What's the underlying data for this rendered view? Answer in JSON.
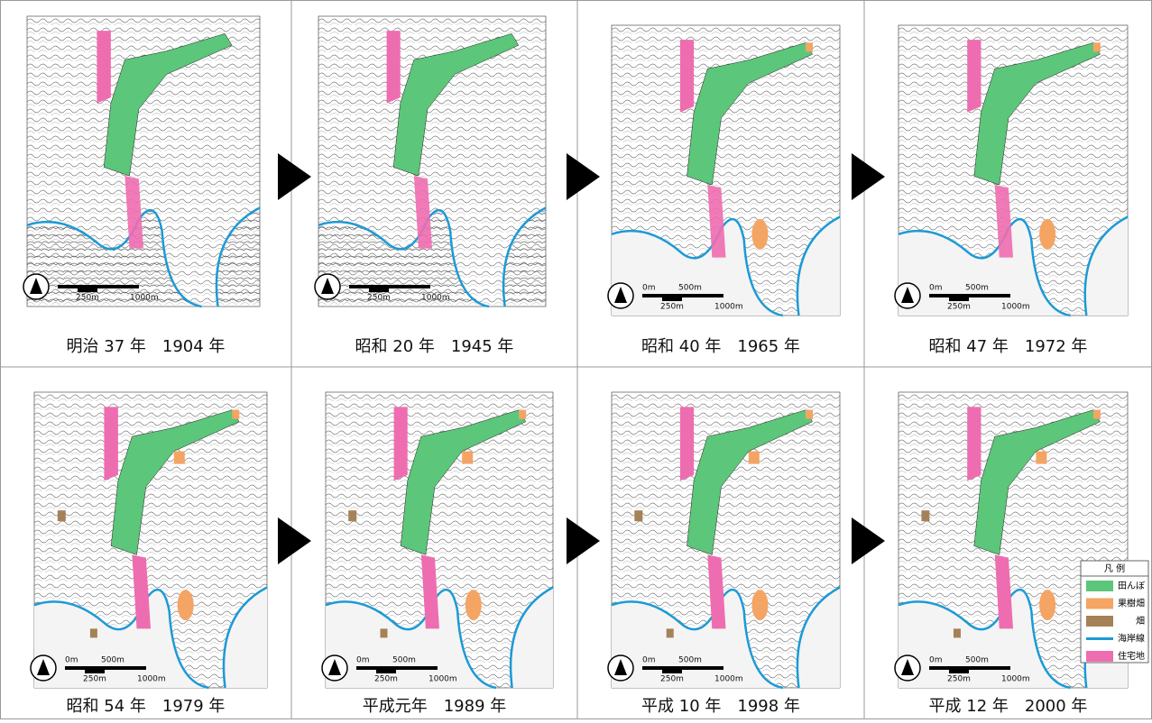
{
  "panels": [
    {
      "caption": "明治 37 年　1904 年"
    },
    {
      "caption": "昭和 20 年　1945 年"
    },
    {
      "caption": "昭和 40 年　1965 年"
    },
    {
      "caption": "昭和 47 年　1972 年"
    },
    {
      "caption": "昭和 54 年　1979 年"
    },
    {
      "caption": "平成元年　1989 年"
    },
    {
      "caption": "平成 10 年　1998 年"
    },
    {
      "caption": "平成 12 年　2000 年"
    }
  ],
  "scale_bar": {
    "labels": [
      "0m",
      "500m",
      "250m",
      "1000m"
    ]
  },
  "legend": {
    "title": "凡 例",
    "items": [
      {
        "label": "田んぼ",
        "color": "#5cc67a",
        "kind": "box"
      },
      {
        "label": "果樹畑",
        "color": "#f4a463",
        "kind": "box"
      },
      {
        "label": "畑",
        "color": "#a58157",
        "kind": "box"
      },
      {
        "label": "海岸線",
        "color": "#1c9ad6",
        "kind": "line"
      },
      {
        "label": "住宅地",
        "color": "#ee6db0",
        "kind": "box"
      }
    ]
  }
}
